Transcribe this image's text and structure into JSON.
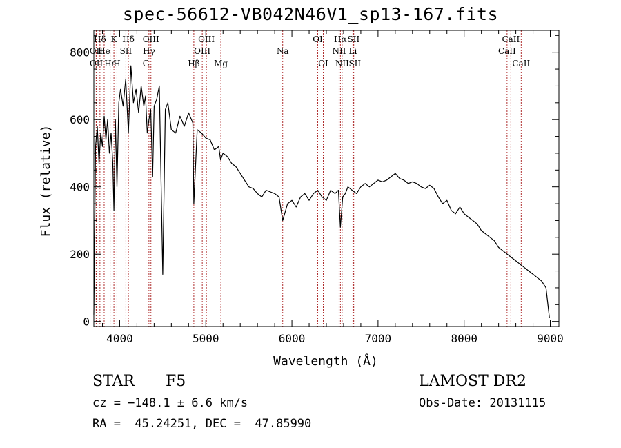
{
  "chart_data": {
    "type": "line",
    "title": "spec-56612-VB042N46V1_sp13-167.fits",
    "xlabel": "Wavelength (Å)",
    "ylabel": "Flux (relative)",
    "xlim": [
      3700,
      9100
    ],
    "ylim": [
      -15,
      865
    ],
    "x_ticks": [
      4000,
      5000,
      6000,
      7000,
      8000,
      9000
    ],
    "y_ticks": [
      0,
      200,
      400,
      600,
      800
    ],
    "grid": false,
    "series": [
      {
        "color": "#000000",
        "x": [
          3700,
          3720,
          3740,
          3760,
          3780,
          3800,
          3820,
          3840,
          3860,
          3880,
          3900,
          3920,
          3933,
          3950,
          3968,
          3990,
          4010,
          4040,
          4070,
          4101,
          4130,
          4160,
          4190,
          4220,
          4250,
          4280,
          4300,
          4320,
          4340,
          4360,
          4383,
          4400,
          4430,
          4460,
          4500,
          4530,
          4560,
          4600,
          4650,
          4700,
          4750,
          4800,
          4850,
          4861,
          4900,
          4950,
          5000,
          5050,
          5100,
          5150,
          5172,
          5200,
          5250,
          5300,
          5350,
          5400,
          5450,
          5500,
          5550,
          5600,
          5650,
          5700,
          5750,
          5800,
          5850,
          5893,
          5950,
          6000,
          6050,
          6100,
          6150,
          6200,
          6250,
          6300,
          6350,
          6400,
          6450,
          6500,
          6540,
          6563,
          6590,
          6620,
          6650,
          6700,
          6750,
          6800,
          6850,
          6900,
          6950,
          7000,
          7050,
          7100,
          7150,
          7200,
          7250,
          7300,
          7350,
          7400,
          7450,
          7500,
          7550,
          7600,
          7650,
          7700,
          7750,
          7800,
          7850,
          7900,
          7950,
          8000,
          8050,
          8100,
          8150,
          8200,
          8250,
          8300,
          8350,
          8400,
          8450,
          8500,
          8550,
          8600,
          8650,
          8700,
          8750,
          8800,
          8850,
          8900,
          8950,
          8990
        ],
        "y": [
          20,
          520,
          580,
          470,
          560,
          520,
          610,
          540,
          600,
          500,
          560,
          470,
          330,
          600,
          400,
          650,
          690,
          640,
          720,
          560,
          760,
          650,
          690,
          620,
          700,
          640,
          670,
          560,
          600,
          630,
          430,
          640,
          660,
          700,
          140,
          630,
          650,
          570,
          560,
          610,
          580,
          620,
          590,
          350,
          570,
          560,
          545,
          540,
          510,
          520,
          480,
          500,
          490,
          470,
          460,
          440,
          420,
          400,
          395,
          380,
          370,
          390,
          385,
          380,
          370,
          300,
          350,
          360,
          340,
          370,
          380,
          360,
          380,
          390,
          370,
          360,
          390,
          380,
          390,
          280,
          370,
          380,
          400,
          390,
          380,
          400,
          410,
          400,
          410,
          420,
          415,
          420,
          430,
          440,
          425,
          420,
          410,
          415,
          410,
          400,
          395,
          405,
          395,
          370,
          350,
          360,
          330,
          320,
          340,
          320,
          310,
          300,
          290,
          270,
          260,
          250,
          240,
          220,
          210,
          200,
          190,
          180,
          170,
          160,
          150,
          140,
          130,
          120,
          100,
          10
        ]
      }
    ],
    "line_marks": [
      {
        "label": "Hδ",
        "x": 3771,
        "row": 0
      },
      {
        "label": "K",
        "x": 3933,
        "row": 0
      },
      {
        "label": "Hδ",
        "x": 4101,
        "row": 0
      },
      {
        "label": "OIII",
        "x": 4363,
        "row": 0
      },
      {
        "label": "OIII",
        "x": 5007,
        "row": 0
      },
      {
        "label": "OI",
        "x": 6300,
        "row": 0
      },
      {
        "label": "Hα",
        "x": 6563,
        "row": 0
      },
      {
        "label": "SII",
        "x": 6716,
        "row": 0
      },
      {
        "label": "CaII",
        "x": 8542,
        "row": 0
      },
      {
        "label": "OII",
        "x": 3727,
        "row": 1
      },
      {
        "label": "He",
        "x": 3820,
        "row": 1
      },
      {
        "label": "SII",
        "x": 4072,
        "row": 1
      },
      {
        "label": "Hγ",
        "x": 4340,
        "row": 1
      },
      {
        "label": "OIII",
        "x": 4959,
        "row": 1
      },
      {
        "label": "Na",
        "x": 5893,
        "row": 1
      },
      {
        "label": "NII",
        "x": 6548,
        "row": 1
      },
      {
        "label": "Li",
        "x": 6708,
        "row": 1
      },
      {
        "label": "CaII",
        "x": 8498,
        "row": 1
      },
      {
        "label": "OII",
        "x": 3729,
        "row": 2
      },
      {
        "label": "Hε",
        "x": 3889,
        "row": 2
      },
      {
        "label": "H",
        "x": 3968,
        "row": 2
      },
      {
        "label": "G",
        "x": 4305,
        "row": 2
      },
      {
        "label": "Hβ",
        "x": 4861,
        "row": 2
      },
      {
        "label": "Mg",
        "x": 5175,
        "row": 2
      },
      {
        "label": "OI",
        "x": 6364,
        "row": 2
      },
      {
        "label": "NII",
        "x": 6583,
        "row": 2
      },
      {
        "label": "SII",
        "x": 6731,
        "row": 2
      },
      {
        "label": "CaII",
        "x": 8662,
        "row": 2
      }
    ]
  },
  "info": {
    "object_class": "STAR",
    "subclass": "F5",
    "survey": "LAMOST DR2",
    "cz": "cz = −148.1 ± 6.6 km/s",
    "obs_date": "Obs-Date: 20131115",
    "coords": "RA =  45.24251, DEC =  47.85990"
  }
}
